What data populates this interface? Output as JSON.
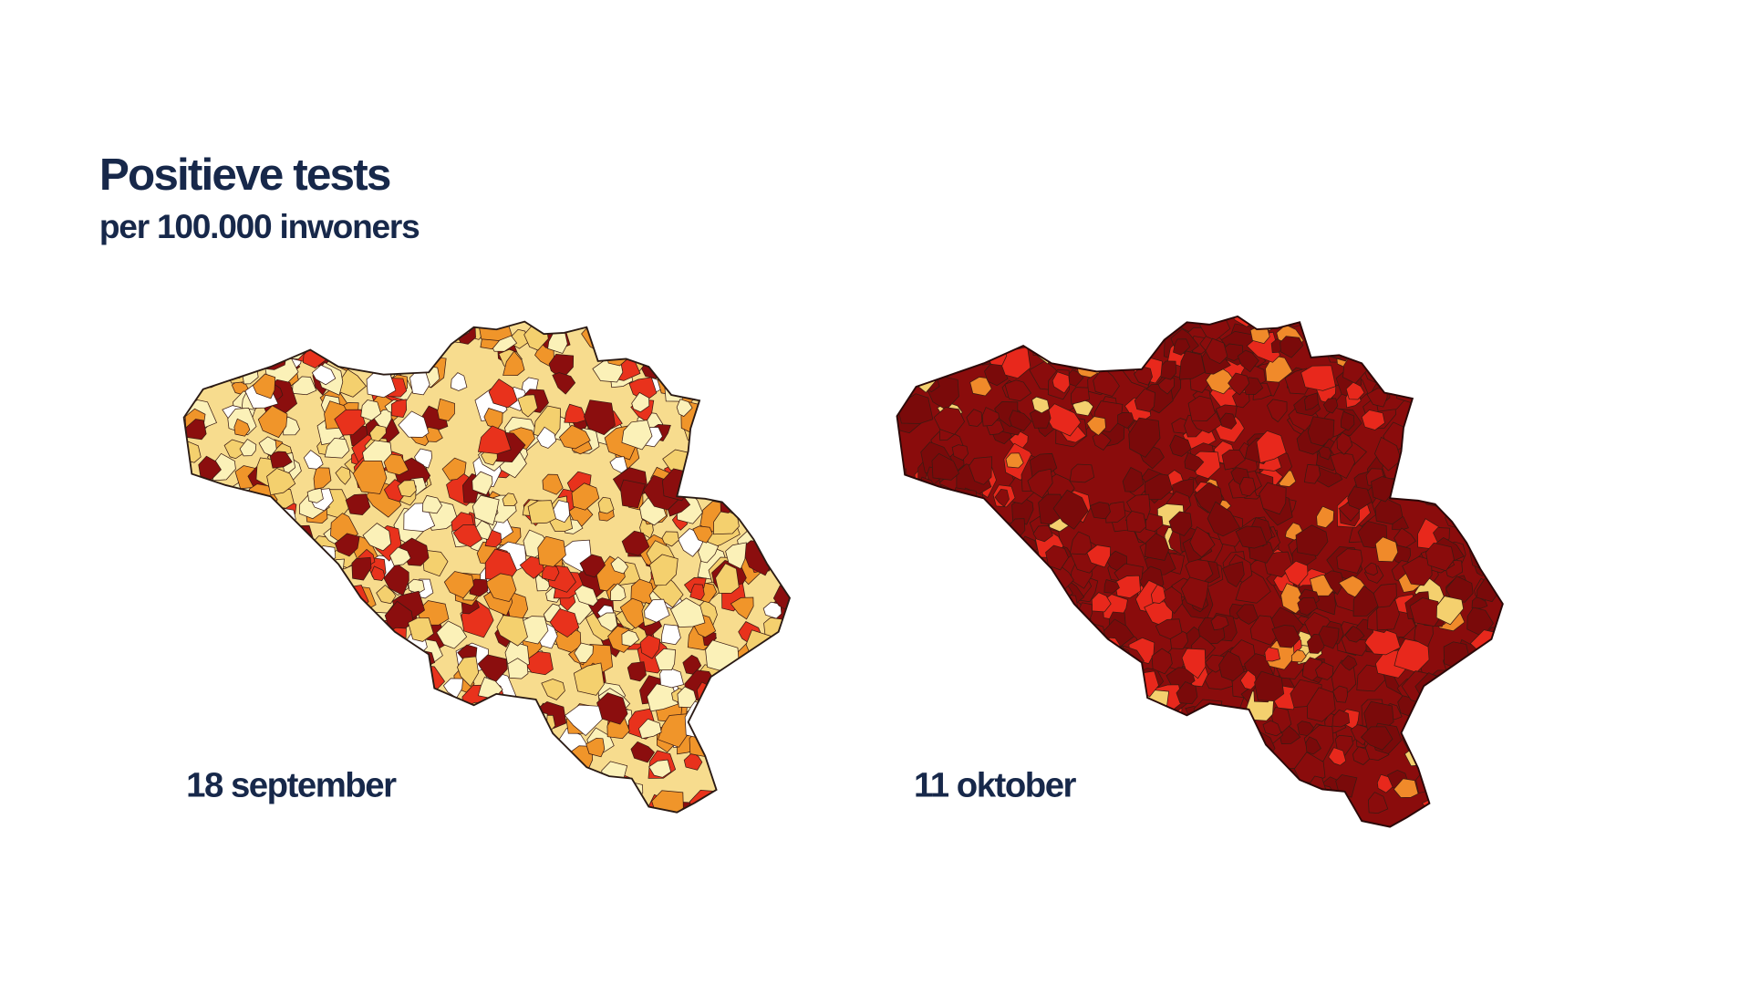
{
  "header": {
    "title": "Positieve tests",
    "subtitle": "per 100.000 inwoners"
  },
  "maps": [
    {
      "label": "18 september"
    },
    {
      "label": "11 oktober"
    }
  ]
}
